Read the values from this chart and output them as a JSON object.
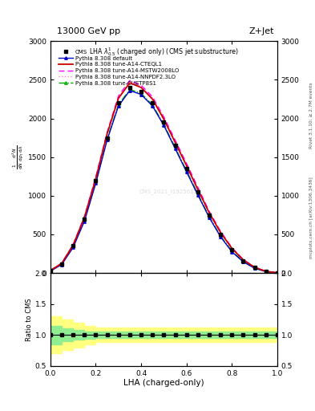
{
  "title_top": "13000 GeV pp",
  "title_right": "Z+Jet",
  "plot_title": "LHA $\\lambda^{1}_{0.5}$ (charged only) (CMS jet substructure)",
  "xlabel": "LHA (charged-only)",
  "right_label_top": "Rivet 3.1.10; ≥ 2.7M events",
  "right_label_bot": "mcplots.cern.ch [arXiv:1306.3436]",
  "watermark": "CMS_2021_I1925615",
  "xlim": [
    0,
    1
  ],
  "ylim_main": [
    0,
    3000
  ],
  "ylim_ratio": [
    0.5,
    2.0
  ],
  "yticks_main": [
    0,
    500,
    1000,
    1500,
    2000,
    2500,
    3000
  ],
  "yticks_ratio": [
    0.5,
    1.0,
    1.5,
    2.0
  ],
  "lha_x": [
    0.0,
    0.05,
    0.1,
    0.15,
    0.2,
    0.25,
    0.3,
    0.35,
    0.4,
    0.45,
    0.5,
    0.55,
    0.6,
    0.65,
    0.7,
    0.75,
    0.8,
    0.85,
    0.9,
    0.95,
    1.0
  ],
  "cms_y": [
    30,
    120,
    350,
    700,
    1200,
    1750,
    2200,
    2400,
    2350,
    2200,
    1950,
    1650,
    1350,
    1050,
    750,
    500,
    300,
    160,
    70,
    20,
    3
  ],
  "pythia_default_y": [
    25,
    110,
    330,
    670,
    1160,
    1720,
    2160,
    2360,
    2310,
    2160,
    1910,
    1610,
    1310,
    1010,
    720,
    470,
    275,
    145,
    62,
    18,
    2
  ],
  "pythia_cteql1_y": [
    32,
    125,
    360,
    720,
    1220,
    1800,
    2260,
    2460,
    2400,
    2250,
    1990,
    1690,
    1390,
    1080,
    780,
    525,
    320,
    170,
    75,
    22,
    3
  ],
  "pythia_mstw_y": [
    33,
    128,
    365,
    730,
    1240,
    1820,
    2290,
    2490,
    2430,
    2280,
    2020,
    1720,
    1420,
    1110,
    800,
    540,
    330,
    175,
    78,
    23,
    3
  ],
  "pythia_nnpdf_y": [
    32,
    126,
    362,
    725,
    1230,
    1810,
    2275,
    2475,
    2415,
    2265,
    2005,
    1705,
    1405,
    1095,
    790,
    532,
    325,
    172,
    76,
    22,
    3
  ],
  "pythia_cuetp_y": [
    28,
    115,
    340,
    685,
    1175,
    1735,
    2175,
    2375,
    2325,
    2175,
    1925,
    1625,
    1325,
    1025,
    730,
    480,
    285,
    150,
    65,
    19,
    2
  ],
  "green_band_upper": [
    1.15,
    1.15,
    1.1,
    1.08,
    1.06,
    1.05,
    1.05,
    1.05,
    1.05,
    1.05,
    1.05,
    1.05,
    1.05,
    1.05,
    1.05,
    1.05,
    1.05,
    1.05,
    1.05,
    1.05,
    1.05
  ],
  "green_band_lower": [
    0.85,
    0.85,
    0.9,
    0.92,
    0.94,
    0.95,
    0.95,
    0.95,
    0.95,
    0.95,
    0.95,
    0.95,
    0.95,
    0.95,
    0.95,
    0.95,
    0.95,
    0.95,
    0.95,
    0.95,
    0.95
  ],
  "yellow_band_upper": [
    1.35,
    1.3,
    1.25,
    1.2,
    1.15,
    1.12,
    1.12,
    1.12,
    1.12,
    1.12,
    1.12,
    1.12,
    1.12,
    1.12,
    1.12,
    1.12,
    1.12,
    1.12,
    1.12,
    1.12,
    1.12
  ],
  "yellow_band_lower": [
    0.65,
    0.7,
    0.75,
    0.8,
    0.85,
    0.88,
    0.88,
    0.88,
    0.88,
    0.88,
    0.88,
    0.88,
    0.88,
    0.88,
    0.88,
    0.88,
    0.88,
    0.88,
    0.88,
    0.88,
    0.88
  ],
  "color_cms": "#000000",
  "color_default": "#0000cc",
  "color_cteql1": "#cc0000",
  "color_mstw": "#ff00ff",
  "color_nnpdf": "#ff88cc",
  "color_cuetp": "#00aa00",
  "legend_entries": [
    "CMS",
    "Pythia 8.308 default",
    "Pythia 8.308 tune-A14-CTEQL1",
    "Pythia 8.308 tune-A14-MSTW2008LO",
    "Pythia 8.308 tune-A14-NNPDF2.3LO",
    "Pythia 8.308 tune-CUETP8S1"
  ]
}
